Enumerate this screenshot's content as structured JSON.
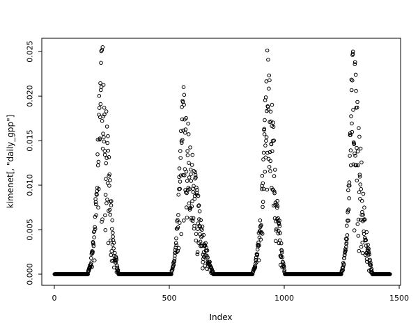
{
  "figure": {
    "background": "#ffffff",
    "foreground": "#000000"
  },
  "chart_data": {
    "type": "scatter",
    "title": "",
    "xlabel": "Index",
    "ylabel": "kimenet[, \"daily_gpp\"]",
    "x_data_range": [
      1,
      1460
    ],
    "xlim": [
      -54.5,
      1506
    ],
    "ylim": [
      -0.00125,
      0.0265
    ],
    "x_ticks": [
      {
        "value": 0,
        "label": "0"
      },
      {
        "value": 500,
        "label": "500"
      },
      {
        "value": 1000,
        "label": "1000"
      },
      {
        "value": 1500,
        "label": "1500"
      }
    ],
    "y_ticks": [
      {
        "value": 0,
        "label": "0.000"
      },
      {
        "value": 0.005,
        "label": "0.005"
      },
      {
        "value": 0.01,
        "label": "0.010"
      },
      {
        "value": 0.015,
        "label": "0.015"
      },
      {
        "value": 0.02,
        "label": "0.020"
      },
      {
        "value": 0.025,
        "label": "0.025"
      }
    ],
    "grid": false,
    "legend": "none",
    "n_points": 1460,
    "marker": {
      "shape": "open-circle",
      "radius": 2.3,
      "stroke": "#000000"
    },
    "series": [
      {
        "name": "daily_gpp",
        "pattern": "four seasonal peaks separated by zero-valued dormant segments",
        "zero_segments": [
          [
            1,
            129
          ],
          [
            284,
            494
          ],
          [
            701,
            844
          ],
          [
            1008,
            1234
          ],
          [
            1389,
            1460
          ]
        ],
        "peaks": [
          {
            "rise_start": 130,
            "center": 205,
            "fall_end": 283,
            "max": 0.0255
          },
          {
            "rise_start": 495,
            "center": 557,
            "fall_end": 700,
            "max": 0.0205
          },
          {
            "rise_start": 845,
            "center": 928,
            "fall_end": 1007,
            "max": 0.0255
          },
          {
            "rise_start": 1235,
            "center": 1298,
            "fall_end": 1388,
            "max": 0.0245
          }
        ],
        "seed": 42
      }
    ]
  }
}
